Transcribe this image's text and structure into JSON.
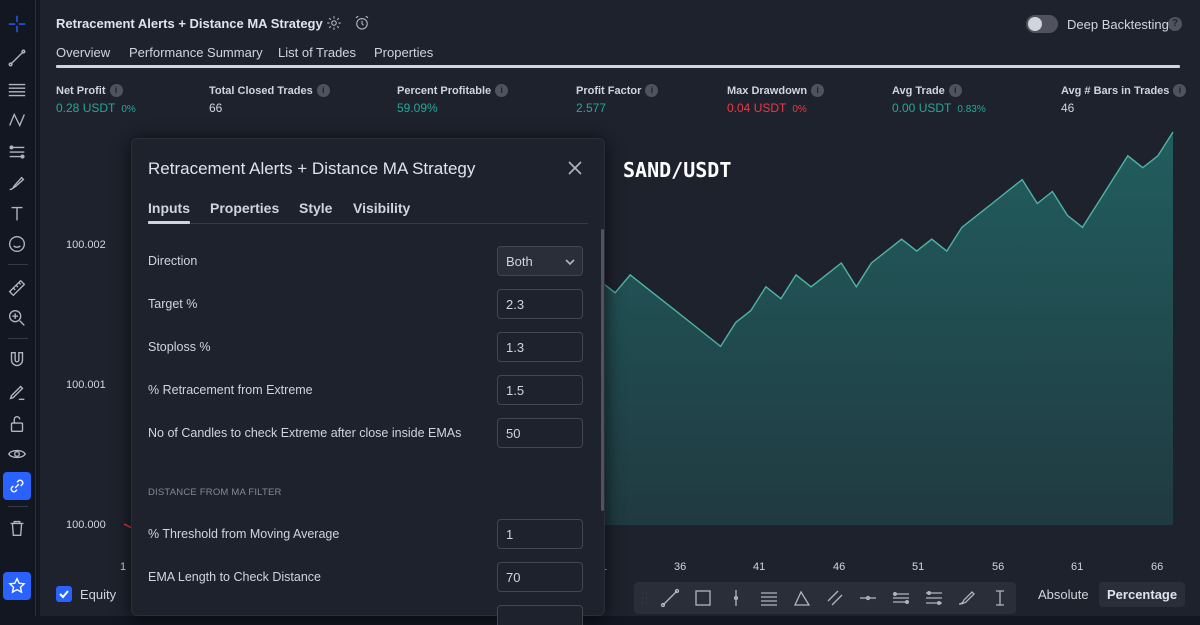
{
  "strategy": {
    "title": "Retracement Alerts + Distance MA Strategy",
    "deep_backtesting_label": "Deep Backtesting",
    "help_glyph": "?",
    "info_glyph": "i"
  },
  "tabs": [
    {
      "label": "Overview"
    },
    {
      "label": "Performance Summary"
    },
    {
      "label": "List of Trades"
    },
    {
      "label": "Properties"
    }
  ],
  "metrics": [
    {
      "label": "Net Profit",
      "value": "0.28 USDT",
      "sub": "0%",
      "color": "#26a69a"
    },
    {
      "label": "Total Closed Trades",
      "value": "66",
      "sub": "",
      "color": "#d1d4dc"
    },
    {
      "label": "Percent Profitable",
      "value": "59.09%",
      "sub": "",
      "color": "#26a69a"
    },
    {
      "label": "Profit Factor",
      "value": "2.577",
      "sub": "",
      "color": "#26a69a"
    },
    {
      "label": "Max Drawdown",
      "value": "0.04 USDT",
      "sub": "0%",
      "color": "#f23645"
    },
    {
      "label": "Avg Trade",
      "value": "0.00 USDT",
      "sub": "0.83%",
      "color": "#26a69a"
    },
    {
      "label": "Avg # Bars in Trades",
      "value": "46",
      "sub": "",
      "color": "#d1d4dc"
    }
  ],
  "chart": {
    "symbol": "SAND/USDT",
    "y_ticks": [
      "100.002",
      "100.001",
      "100.000"
    ],
    "x_ticks": [
      "1",
      "1",
      "36",
      "41",
      "46",
      "51",
      "56",
      "61",
      "66"
    ],
    "fill_color": "#26a69a"
  },
  "chart_data": {
    "type": "area",
    "x": [
      29,
      30,
      31,
      32,
      33,
      34,
      35,
      36,
      37,
      38,
      39,
      40,
      41,
      42,
      43,
      44,
      45,
      46,
      47,
      48,
      49,
      50,
      51,
      52,
      53,
      54,
      55,
      56,
      57,
      58,
      59,
      60,
      61,
      62,
      63,
      64,
      65,
      66,
      67
    ],
    "values": [
      100.00205,
      100.00195,
      100.0021,
      100.002,
      100.0019,
      100.0018,
      100.0017,
      100.0016,
      100.0015,
      100.0017,
      100.0018,
      100.002,
      100.0019,
      100.0021,
      100.002,
      100.0021,
      100.0022,
      100.002,
      100.0022,
      100.0023,
      100.0024,
      100.0023,
      100.0024,
      100.0023,
      100.0025,
      100.0026,
      100.0027,
      100.0028,
      100.0029,
      100.0027,
      100.0028,
      100.0026,
      100.0025,
      100.0027,
      100.0029,
      100.0031,
      100.003,
      100.0031,
      100.0033
    ],
    "ylim": [
      100.0,
      100.0033
    ],
    "series": [
      {
        "name": "Equity"
      }
    ],
    "grid": false
  },
  "bottom": {
    "equity_label": "Equity",
    "absolute_label": "Absolute",
    "percentage_label": "Percentage"
  },
  "dialog": {
    "title": "Retracement Alerts + Distance MA Strategy",
    "tabs": [
      "Inputs",
      "Properties",
      "Style",
      "Visibility"
    ],
    "active_tab": "Inputs",
    "rows": [
      {
        "label": "Direction",
        "value": "Both",
        "kind": "select"
      },
      {
        "label": "Target %",
        "value": "2.3",
        "kind": "input"
      },
      {
        "label": "Stoploss %",
        "value": "1.3",
        "kind": "input"
      },
      {
        "label": "% Retracement from Extreme",
        "value": "1.5",
        "kind": "input"
      },
      {
        "label": "No of Candles to check Extreme after close inside EMAs",
        "value": "50",
        "kind": "input"
      }
    ],
    "section_title": "DISTANCE FROM MA FILTER",
    "rows2": [
      {
        "label": "% Threshold from Moving Average",
        "value": "1",
        "kind": "input"
      },
      {
        "label": "EMA Length to Check Distance",
        "value": "70",
        "kind": "input"
      }
    ]
  }
}
